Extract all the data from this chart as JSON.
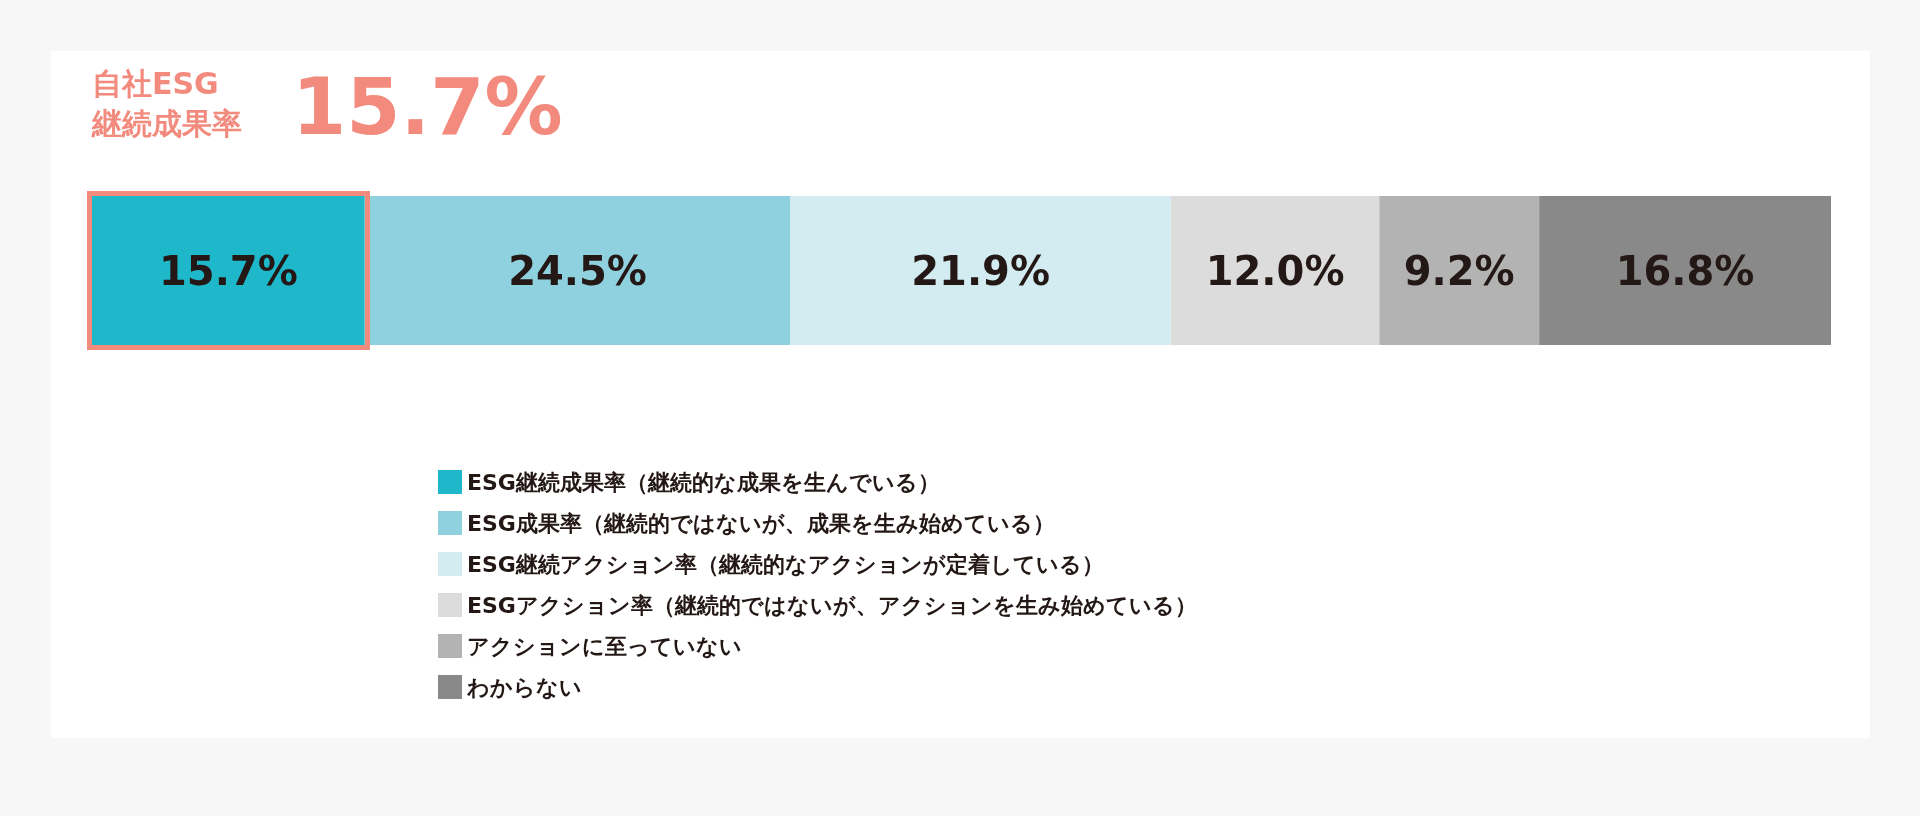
{
  "chart_data": {
    "type": "bar",
    "stacked": true,
    "orientation": "horizontal",
    "title": "自社ESG\n継続成果率",
    "subtitle": "15.7%",
    "categories": [
      null
    ],
    "legend": "bottom",
    "series": [
      {
        "name": "ESG継続成果率（継続的な成果を生んでいる）",
        "color": "#1fb8cb",
        "values": [
          15.7
        ],
        "value_labels": [
          "15.7%"
        ]
      },
      {
        "name": "ESG成果率（継続的ではないが、成果を生み始めている）",
        "color": "#8fd1df",
        "values": [
          24.5
        ],
        "value_labels": [
          "24.5%"
        ]
      },
      {
        "name": "ESG継続アクション率（継続的なアクションが定着している）",
        "color": "#d3ecf1",
        "values": [
          21.9
        ],
        "value_labels": [
          "21.9%"
        ]
      },
      {
        "name": "ESGアクション率（継続的ではないが、アクションを生み始めている）",
        "color": "#dcdcdc",
        "values": [
          12.0
        ],
        "value_labels": [
          "12.0%"
        ]
      },
      {
        "name": "アクションに至っていない",
        "color": "#b3b3b3",
        "values": [
          9.2
        ],
        "value_labels": [
          "9.2%"
        ]
      },
      {
        "name": "わからない",
        "color": "#898989",
        "values": [
          16.8
        ],
        "value_labels": [
          "16.8%"
        ]
      }
    ]
  }
}
